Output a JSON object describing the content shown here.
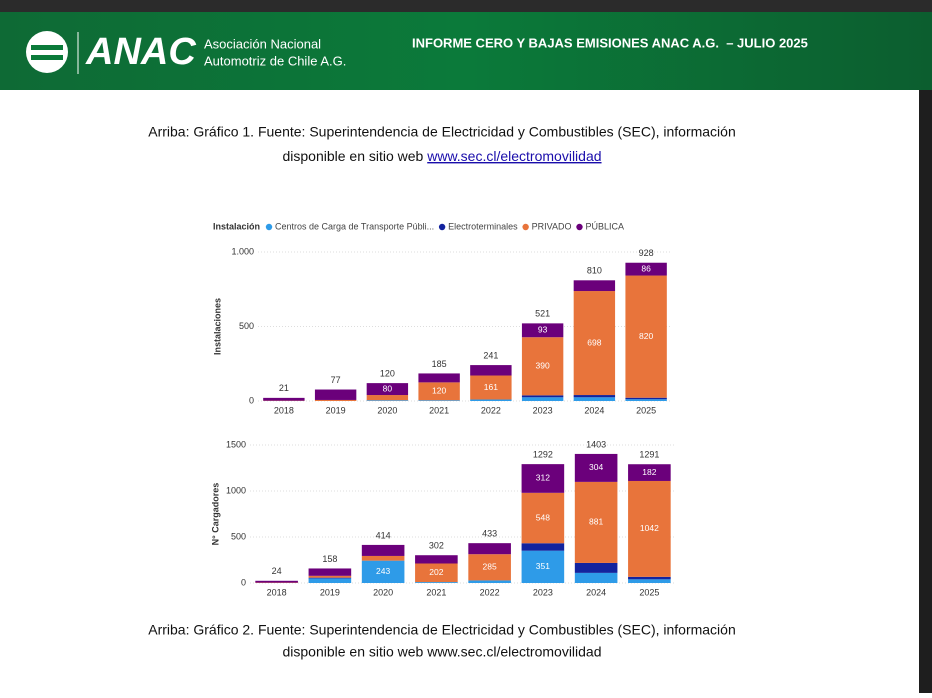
{
  "header": {
    "logo": "ANAC",
    "org_line1": "Asociación Nacional",
    "org_line2": "Automotriz de Chile A.G.",
    "title": "INFORME CERO Y BAJAS EMISIONES ANAC A.G.  – JULIO 2025"
  },
  "caption1": {
    "line1": "Arriba: Gráfico 1. Fuente: Superintendencia de Electricidad y Combustibles (SEC), información",
    "line2": "disponible en sitio web ",
    "link": "www.sec.cl/electromovilidad"
  },
  "caption2": {
    "line1": "Arriba: Gráfico 2. Fuente: Superintendencia de Electricidad y Combustibles (SEC), información",
    "line2": "disponible en sitio web www.sec.cl/electromovilidad"
  },
  "chart_data": [
    {
      "type": "bar",
      "stacked": true,
      "legend_title": "Instalación",
      "ylabel": "Instalaciones",
      "categories": [
        "2018",
        "2019",
        "2020",
        "2021",
        "2022",
        "2023",
        "2024",
        "2025"
      ],
      "totals": [
        21,
        77,
        120,
        185,
        241,
        521,
        810,
        928
      ],
      "series": [
        {
          "name": "Centros de Carga de Transporte Públi...",
          "color": "#2e9be8",
          "values": [
            0,
            0,
            5,
            5,
            10,
            25,
            25,
            12
          ]
        },
        {
          "name": "Electroterminales",
          "color": "#12239e",
          "values": [
            0,
            0,
            0,
            0,
            0,
            13,
            15,
            10
          ]
        },
        {
          "name": "PRIVADO",
          "color": "#e8743b",
          "values": [
            2,
            7,
            35,
            120,
            161,
            390,
            698,
            820
          ]
        },
        {
          "name": "PÚBLICA",
          "color": "#6b007b",
          "values": [
            19,
            70,
            80,
            60,
            70,
            93,
            72,
            86
          ]
        }
      ],
      "ylim": [
        0,
        1000
      ],
      "yticks": [
        0,
        500,
        {
          "value": 1000,
          "label": "1.000"
        }
      ],
      "grid": true
    },
    {
      "type": "bar",
      "stacked": true,
      "ylabel": "N° Cargadores",
      "categories": [
        "2018",
        "2019",
        "2020",
        "2021",
        "2022",
        "2023",
        "2024",
        "2025"
      ],
      "totals": [
        24,
        158,
        414,
        302,
        433,
        1292,
        1403,
        1291
      ],
      "series": [
        {
          "name": "Centros de Carga de Transporte Públi...",
          "color": "#2e9be8",
          "values": [
            0,
            50,
            243,
            10,
            28,
            351,
            110,
            40
          ]
        },
        {
          "name": "Electroterminales",
          "color": "#12239e",
          "values": [
            0,
            8,
            0,
            0,
            0,
            81,
            108,
            27
          ]
        },
        {
          "name": "PRIVADO",
          "color": "#e8743b",
          "values": [
            4,
            20,
            51,
            202,
            285,
            548,
            881,
            1042
          ]
        },
        {
          "name": "PÚBLICA",
          "color": "#6b007b",
          "values": [
            20,
            80,
            120,
            90,
            120,
            312,
            304,
            182
          ]
        }
      ],
      "ylim": [
        0,
        1500
      ],
      "yticks": [
        0,
        500,
        1000,
        1500
      ],
      "grid": true
    }
  ]
}
